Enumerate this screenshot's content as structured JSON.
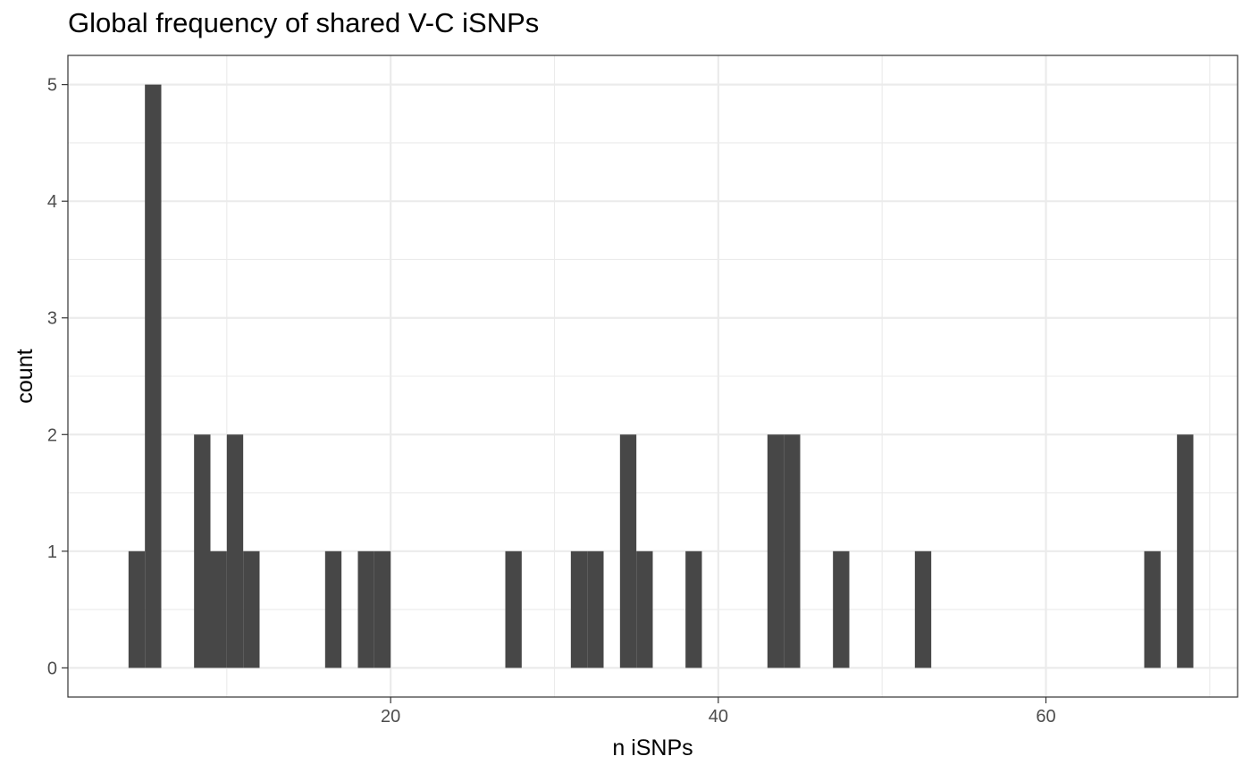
{
  "chart_data": {
    "type": "bar",
    "title": "Global frequency of shared V-C iSNPs",
    "xlabel": "n iSNPs",
    "ylabel": "count",
    "xlim": [
      0.3,
      71.7
    ],
    "ylim": [
      -0.25,
      5.25
    ],
    "x_ticks": [
      20,
      40,
      60
    ],
    "y_ticks": [
      0,
      1,
      2,
      3,
      4,
      5
    ],
    "bin_width": 1,
    "bars": [
      {
        "x": 4.5,
        "y": 1
      },
      {
        "x": 5.5,
        "y": 5
      },
      {
        "x": 8.5,
        "y": 2
      },
      {
        "x": 9.5,
        "y": 1
      },
      {
        "x": 10.5,
        "y": 2
      },
      {
        "x": 11.5,
        "y": 1
      },
      {
        "x": 16.5,
        "y": 1
      },
      {
        "x": 18.5,
        "y": 1
      },
      {
        "x": 19.5,
        "y": 1
      },
      {
        "x": 27.5,
        "y": 1
      },
      {
        "x": 31.5,
        "y": 1
      },
      {
        "x": 32.5,
        "y": 1
      },
      {
        "x": 34.5,
        "y": 2
      },
      {
        "x": 35.5,
        "y": 1
      },
      {
        "x": 38.5,
        "y": 1
      },
      {
        "x": 43.5,
        "y": 2
      },
      {
        "x": 44.5,
        "y": 2
      },
      {
        "x": 47.5,
        "y": 1
      },
      {
        "x": 52.5,
        "y": 1
      },
      {
        "x": 66.5,
        "y": 1
      },
      {
        "x": 68.5,
        "y": 2
      }
    ],
    "bar_color": "#474747",
    "grid": true,
    "legend": "none"
  }
}
